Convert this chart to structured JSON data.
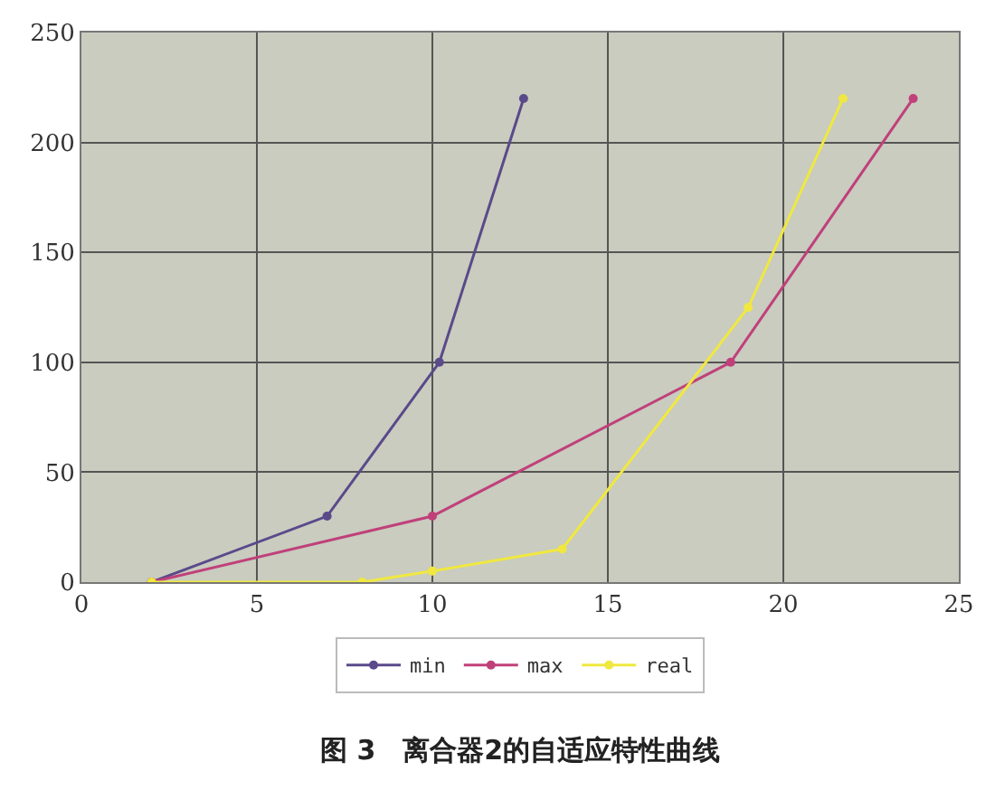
{
  "chart_data": {
    "type": "line",
    "title": "图 3　离合器2的自适应特性曲线",
    "xlim": [
      0,
      25
    ],
    "xticks": [
      0,
      5,
      10,
      15,
      20,
      25
    ],
    "ylim": [
      0,
      250
    ],
    "yticks": [
      0,
      50,
      100,
      150,
      200,
      250
    ],
    "grid": true,
    "legend": "bottom",
    "marker": "circle",
    "line_style": "solid",
    "series": [
      {
        "name": "min",
        "color": "#5a4a8a",
        "x": [
          2,
          7,
          10.2,
          12.6
        ],
        "values": [
          0,
          30,
          100,
          220
        ]
      },
      {
        "name": "max",
        "color": "#c0407a",
        "x": [
          2,
          10,
          18.5,
          23.7
        ],
        "values": [
          0,
          30,
          100,
          220
        ]
      },
      {
        "name": "real",
        "color": "#f0e840",
        "x": [
          2,
          8,
          10,
          13.7,
          19,
          21.7
        ],
        "values": [
          0,
          0,
          5,
          15,
          125,
          220
        ]
      }
    ]
  }
}
